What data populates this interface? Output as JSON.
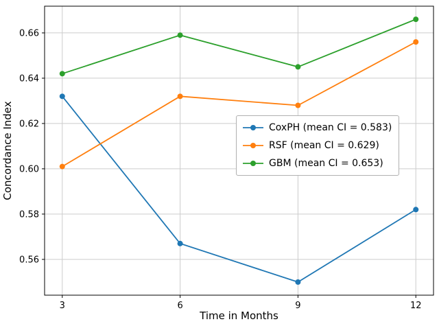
{
  "chart_data": {
    "type": "line",
    "title": "",
    "xlabel": "Time in Months",
    "ylabel": "Concordance Index",
    "x": [
      3,
      6,
      9,
      12
    ],
    "xticks": [
      3,
      6,
      9,
      12
    ],
    "yticks": [
      0.56,
      0.58,
      0.6,
      0.62,
      0.64,
      0.66
    ],
    "xlim": [
      2.55,
      12.45
    ],
    "ylim": [
      0.5442,
      0.6718
    ],
    "grid": true,
    "legend_position": "center right",
    "series": [
      {
        "name": "CoxPH",
        "label": "CoxPH (mean CI = 0.583)",
        "color": "#1f77b4",
        "values": [
          0.632,
          0.567,
          0.55,
          0.582
        ],
        "mean_ci": 0.583
      },
      {
        "name": "RSF",
        "label": "RSF (mean CI = 0.629)",
        "color": "#ff7f0e",
        "values": [
          0.601,
          0.632,
          0.628,
          0.656
        ],
        "mean_ci": 0.629
      },
      {
        "name": "GBM",
        "label": "GBM (mean CI = 0.653)",
        "color": "#2ca02c",
        "values": [
          0.642,
          0.659,
          0.645,
          0.666
        ],
        "mean_ci": 0.653
      }
    ],
    "marker": "circle",
    "grid_color": "#cccccc"
  }
}
